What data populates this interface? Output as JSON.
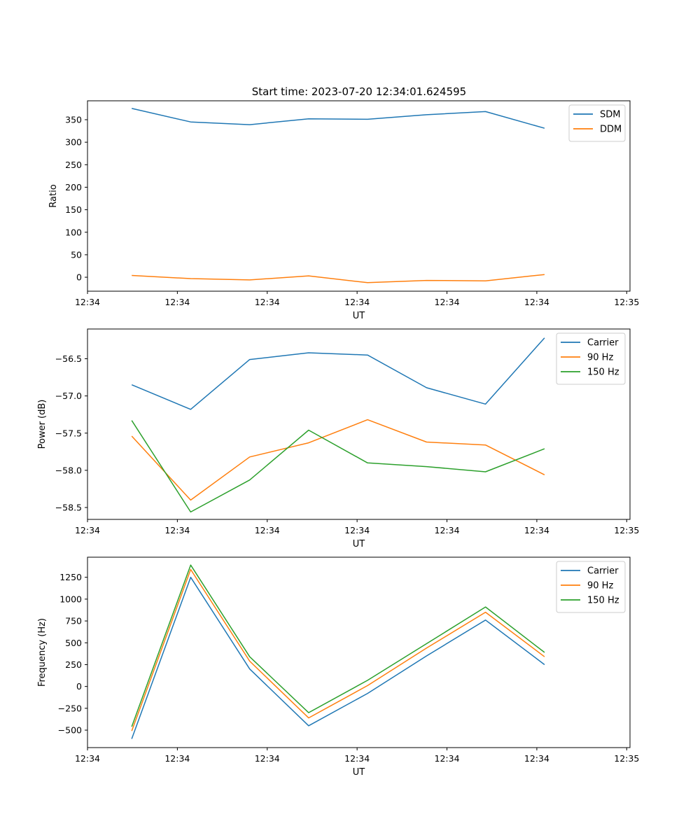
{
  "figure": {
    "suptitle": "Start time: 2023-07-20 12:34:01.624595"
  },
  "chart_data": [
    {
      "type": "line",
      "title": "",
      "xlabel": "UT",
      "ylabel": "Ratio",
      "xlim": [
        0,
        9.2
      ],
      "ylim": [
        -31,
        392
      ],
      "xticks": [
        0,
        1.524,
        3.048,
        4.572,
        6.096,
        7.62,
        9.144
      ],
      "xtick_labels": [
        "12:34",
        "12:34",
        "12:34",
        "12:34",
        "12:34",
        "12:34",
        "12:35"
      ],
      "yticks": [
        0,
        50,
        100,
        150,
        200,
        250,
        300,
        350
      ],
      "ytick_labels": [
        "0",
        "50",
        "100",
        "150",
        "200",
        "250",
        "300",
        "350"
      ],
      "x": [
        0.75,
        1.75,
        2.75,
        3.75,
        4.75,
        5.75,
        6.75,
        7.75
      ],
      "legend_loc": "top-right",
      "series": [
        {
          "name": "SDM",
          "color": "#1f77b4",
          "values": [
            375,
            345,
            339,
            352,
            351,
            361,
            368,
            331
          ]
        },
        {
          "name": "DDM",
          "color": "#ff7f0e",
          "values": [
            4,
            -3,
            -6,
            3,
            -12,
            -7,
            -8,
            6
          ]
        }
      ]
    },
    {
      "type": "line",
      "title": "",
      "xlabel": "UT",
      "ylabel": "Power (dB)",
      "xlim": [
        0,
        9.2
      ],
      "ylim": [
        -58.66,
        -56.1
      ],
      "xticks": [
        0,
        1.524,
        3.048,
        4.572,
        6.096,
        7.62,
        9.144
      ],
      "xtick_labels": [
        "12:34",
        "12:34",
        "12:34",
        "12:34",
        "12:34",
        "12:34",
        "12:35"
      ],
      "yticks": [
        -58.5,
        -58.0,
        -57.5,
        -57.0,
        -56.5
      ],
      "ytick_labels": [
        "−58.5",
        "−58.0",
        "−57.5",
        "−57.0",
        "−56.5"
      ],
      "x": [
        0.75,
        1.75,
        2.75,
        3.75,
        4.75,
        5.75,
        6.75,
        7.75
      ],
      "legend_loc": "top-right",
      "series": [
        {
          "name": "Carrier",
          "color": "#1f77b4",
          "values": [
            -56.85,
            -57.18,
            -56.51,
            -56.42,
            -56.45,
            -56.89,
            -57.11,
            -56.22
          ]
        },
        {
          "name": "90 Hz",
          "color": "#ff7f0e",
          "values": [
            -57.54,
            -58.4,
            -57.82,
            -57.63,
            -57.32,
            -57.62,
            -57.66,
            -58.06
          ]
        },
        {
          "name": "150 Hz",
          "color": "#2ca02c",
          "values": [
            -57.33,
            -58.56,
            -58.13,
            -57.46,
            -57.9,
            -57.95,
            -58.02,
            -57.71
          ]
        }
      ]
    },
    {
      "type": "line",
      "title": "",
      "xlabel": "UT",
      "ylabel": "Frequency (Hz)",
      "xlim": [
        0,
        9.2
      ],
      "ylim": [
        -700,
        1480
      ],
      "xticks": [
        0,
        1.524,
        3.048,
        4.572,
        6.096,
        7.62,
        9.144
      ],
      "xtick_labels": [
        "12:34",
        "12:34",
        "12:34",
        "12:34",
        "12:34",
        "12:34",
        "12:35"
      ],
      "yticks": [
        -500,
        -250,
        0,
        250,
        500,
        750,
        1000,
        1250
      ],
      "ytick_labels": [
        "−500",
        "−250",
        "0",
        "250",
        "500",
        "750",
        "1000",
        "1250"
      ],
      "x": [
        0.75,
        1.75,
        2.75,
        3.75,
        4.75,
        5.75,
        6.75,
        7.75
      ],
      "legend_loc": "top-right",
      "series": [
        {
          "name": "Carrier",
          "color": "#1f77b4",
          "values": [
            -600,
            1250,
            200,
            -450,
            -80,
            350,
            760,
            250
          ]
        },
        {
          "name": "90 Hz",
          "color": "#ff7f0e",
          "values": [
            -510,
            1340,
            290,
            -360,
            10,
            440,
            850,
            340
          ]
        },
        {
          "name": "150 Hz",
          "color": "#2ca02c",
          "values": [
            -460,
            1390,
            340,
            -300,
            70,
            490,
            910,
            390
          ]
        }
      ]
    }
  ]
}
